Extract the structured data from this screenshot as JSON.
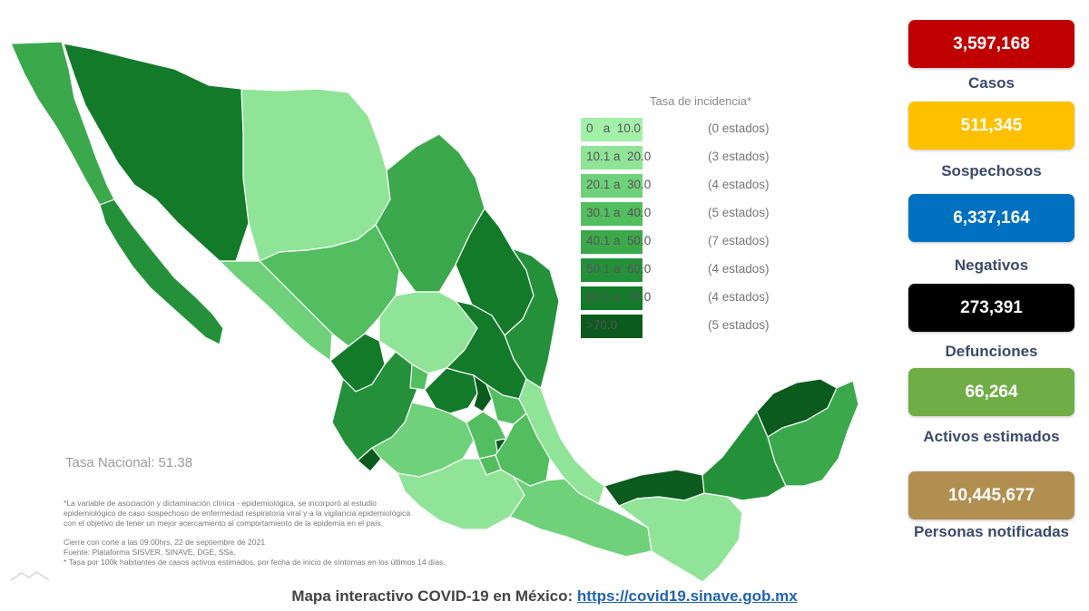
{
  "legend": {
    "title": "Tasa de incidencia*",
    "rows": [
      {
        "range": "0   a  10.0",
        "count": "(0 estados)",
        "color": "#a3f0a9"
      },
      {
        "range": "10.1 a  20.0",
        "count": "(3 estados)",
        "color": "#8fe497"
      },
      {
        "range": "20.1 a  30.0",
        "count": "(4 estados)",
        "color": "#6fd17a"
      },
      {
        "range": "30.1 a  40.0",
        "count": "(5 estados)",
        "color": "#52be5f"
      },
      {
        "range": "40.1 a  50.0",
        "count": "(7 estados)",
        "color": "#3ba84b"
      },
      {
        "range": "50.1 a  60.0",
        "count": "(4 estados)",
        "color": "#24913a"
      },
      {
        "range": "60.1 a  70.0",
        "count": "(4 estados)",
        "color": "#137a2a"
      },
      {
        "range": ">70.0",
        "count": "(5 estados)",
        "color": "#0a5b1d"
      }
    ]
  },
  "tasa_nacional": "Tasa Nacional: 51.38",
  "footnotes": [
    "*La variable de asociación y dictaminación clínica - epidemiológica, se incorporó al estudio",
    "epidemiológico de caso sospechoso de enfermedad respiratoria viral y a la vigilancia epidemiológica",
    "con el objetivo de tener un mejor acercamiento al comportamiento de la epidemia en el país.",
    "Cierre con corte a las 09:00hrs, 22 de septiembre de 2021",
    "Fuente: Plataforma SISVER, SINAVE, DGE, SSa.",
    "* Tasa por 100k habitantes de casos activos estimados, por fecha de inicio de síntomas en los últimos 14 días."
  ],
  "stats": [
    {
      "value": "3,597,168",
      "label": "Casos",
      "color": "#c00000"
    },
    {
      "value": "511,345",
      "label": "Sospechosos",
      "color": "#ffc000"
    },
    {
      "value": "6,337,164",
      "label": "Negativos",
      "color": "#0070c0"
    },
    {
      "value": "273,391",
      "label": "Defunciones",
      "color": "#000000"
    },
    {
      "value": "66,264",
      "label": "Activos estimados",
      "color": "#70ad47"
    },
    {
      "value": "10,445,677",
      "label": "Personas notificadas",
      "color": "#b08f50"
    }
  ],
  "caption": {
    "text": "Mapa interactivo COVID-19 en México: ",
    "link": "https://covid19.sinave.gob.mx"
  }
}
